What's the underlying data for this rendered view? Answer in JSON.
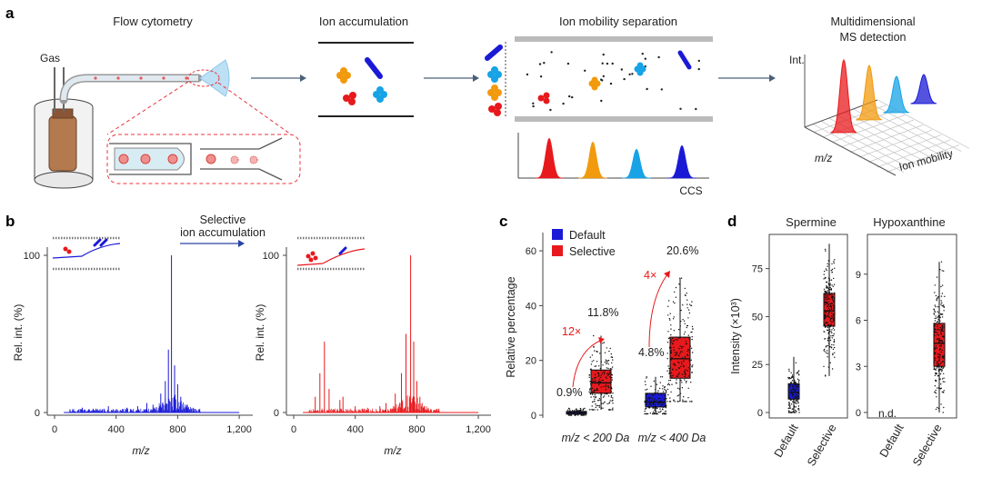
{
  "panel_labels": {
    "a": "a",
    "b": "b",
    "c": "c",
    "d": "d"
  },
  "panel_a": {
    "flow_title": "Flow cytometry",
    "gas_label": "Gas",
    "accum_title": "Ion accumulation",
    "ims_title": "Ion mobility separation",
    "ims_xlabel": "CCS",
    "ms_title_line1": "Multidimensional",
    "ms_title_line2": "MS detection",
    "ms_ylabel": "Int.",
    "ms_xlabel": "m/z",
    "ms_zlabel": "Ion mobility"
  },
  "panel_b": {
    "arrow_label_line1": "Selective",
    "arrow_label_line2": "ion accumulation",
    "ylabel": "Rel. int. (%)",
    "xlabel": "m/z",
    "ytick_top": "100",
    "ytick_bottom": "0",
    "xticks": [
      "0",
      "400",
      "800",
      "1,200"
    ]
  },
  "panel_c": {
    "ylabel": "Relative percentage",
    "legend": [
      "Default",
      "Selective"
    ],
    "yticks": [
      "0",
      "20",
      "40",
      "60"
    ],
    "groups": [
      "m/z < 200 Da",
      "m/z < 400 Da"
    ],
    "annotations": {
      "g1_default": "0.9%",
      "g1_selective": "11.8%",
      "g1_fold": "12×",
      "g2_default": "4.8%",
      "g2_selective": "20.6%",
      "g2_fold": "4×"
    }
  },
  "panel_d": {
    "ylabel": "Intensity (×10³)",
    "spermine_title": "Spermine",
    "hypo_title": "Hypoxanthine",
    "spermine_yticks": [
      "0",
      "25",
      "50",
      "75"
    ],
    "hypo_yticks": [
      "0",
      "3",
      "6",
      "9"
    ],
    "xcats": [
      "Default",
      "Selective"
    ],
    "nd": "n.d."
  },
  "colors": {
    "default": "#1a1ad6",
    "selective": "#e8191c",
    "orange": "#f29a0e",
    "cyan": "#17a3e6",
    "red_dash": "#e8353a",
    "grey_axis": "#555555"
  },
  "chart_data": [
    {
      "type": "line",
      "title": "",
      "xlabel": "m/z",
      "ylabel": "Rel. int. (%)",
      "xlim": [
        0,
        1300
      ],
      "ylim": [
        0,
        100
      ],
      "series": [
        {
          "name": "",
          "peaks": [
            [
              100,
              2
            ],
            [
              180,
              3
            ],
            [
              250,
              2
            ],
            [
              310,
              2
            ],
            [
              350,
              4
            ],
            [
              470,
              3
            ],
            [
              540,
              4
            ],
            [
              600,
              6
            ],
            [
              640,
              5
            ],
            [
              690,
              12
            ],
            [
              720,
              20
            ],
            [
              740,
              40
            ],
            [
              760,
              100
            ],
            [
              780,
              30
            ],
            [
              800,
              18
            ],
            [
              820,
              10
            ],
            [
              860,
              5
            ],
            [
              900,
              3
            ]
          ]
        }
      ]
    },
    {
      "type": "line",
      "title": "",
      "xlabel": "m/z",
      "ylabel": "Rel. int. (%)",
      "xlim": [
        0,
        1300
      ],
      "ylim": [
        0,
        100
      ],
      "series": [
        {
          "name": "",
          "peaks": [
            [
              140,
              10
            ],
            [
              170,
              25
            ],
            [
              200,
              45
            ],
            [
              230,
              15
            ],
            [
              300,
              8
            ],
            [
              320,
              10
            ],
            [
              400,
              4
            ],
            [
              480,
              3
            ],
            [
              560,
              4
            ],
            [
              600,
              6
            ],
            [
              660,
              12
            ],
            [
              700,
              25
            ],
            [
              730,
              50
            ],
            [
              760,
              100
            ],
            [
              780,
              45
            ],
            [
              800,
              20
            ],
            [
              820,
              10
            ],
            [
              850,
              4
            ]
          ]
        }
      ]
    },
    {
      "type": "box",
      "title": "",
      "ylabel": "Relative percentage",
      "ylim": [
        0,
        65
      ],
      "categories": [
        "m/z < 200 Da",
        "m/z < 400 Da"
      ],
      "series": [
        {
          "name": "Default",
          "boxes": [
            {
              "q1": 0.4,
              "median": 0.9,
              "q3": 1.4,
              "whisk_lo": 0,
              "whisk_hi": 2.5
            },
            {
              "q1": 3,
              "median": 4.8,
              "q3": 8,
              "whisk_lo": 0.5,
              "whisk_hi": 14
            }
          ]
        },
        {
          "name": "Selective",
          "boxes": [
            {
              "q1": 8,
              "median": 11.8,
              "q3": 16.5,
              "whisk_lo": 2,
              "whisk_hi": 29
            },
            {
              "q1": 13.5,
              "median": 20.6,
              "q3": 28.5,
              "whisk_lo": 5,
              "whisk_hi": 50
            }
          ]
        }
      ]
    },
    {
      "type": "box",
      "title": "Spermine",
      "ylabel": "Intensity (×10³)",
      "ylim": [
        0,
        90
      ],
      "categories": [
        "Default",
        "Selective"
      ],
      "boxes": [
        {
          "q1": 7,
          "median": 10.5,
          "q3": 15,
          "whisk_lo": 0,
          "whisk_hi": 29
        },
        {
          "q1": 45,
          "median": 53,
          "q3": 62,
          "whisk_lo": 19,
          "whisk_hi": 88
        }
      ]
    },
    {
      "type": "box",
      "title": "Hypoxanthine",
      "ylabel": "Intensity (×10³)",
      "ylim": [
        0,
        12
      ],
      "categories": [
        "Default",
        "Selective"
      ],
      "boxes": [
        null,
        {
          "q1": 3,
          "median": 4.5,
          "q3": 5.8,
          "whisk_lo": 0,
          "whisk_hi": 9.8
        }
      ]
    }
  ]
}
